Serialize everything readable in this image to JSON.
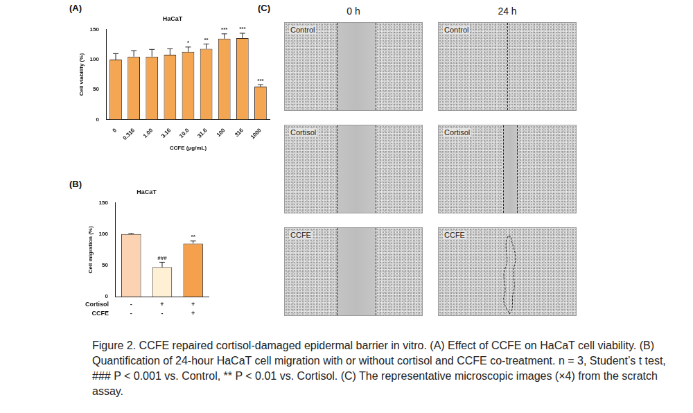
{
  "chart_data": [
    {
      "panel": "(A)",
      "type": "bar",
      "title": "HaCaT",
      "categories": [
        "0",
        "0.316",
        "1.00",
        "3.16",
        "10.0",
        "31.6",
        "100",
        "316",
        "1000"
      ],
      "values": [
        100,
        105,
        105,
        108,
        113,
        118,
        135,
        136,
        55
      ],
      "errors": [
        10,
        10,
        12,
        10,
        8,
        8,
        8,
        8,
        3
      ],
      "significance": [
        null,
        null,
        null,
        null,
        "*",
        "**",
        "***",
        "***",
        "***"
      ],
      "color": "#f5a653",
      "x_label": "CCFE (μg/mL)",
      "y_label": "Cell viability (%)",
      "ylim": [
        0,
        150
      ],
      "yticks": [
        0,
        50,
        100,
        150
      ],
      "grid": false
    },
    {
      "panel": "(B)",
      "type": "bar",
      "title": "HaCaT",
      "categories": [
        null,
        null,
        null
      ],
      "treatment_rows": [
        {
          "name": "Cortisol",
          "signs": [
            "-",
            "+",
            "+"
          ]
        },
        {
          "name": "CCFE",
          "signs": [
            "-",
            "-",
            "+"
          ]
        }
      ],
      "values": [
        100,
        47,
        85
      ],
      "errors": [
        1,
        8,
        4
      ],
      "significance": [
        null,
        "###",
        "**"
      ],
      "colors": [
        "#fbd3b3",
        "#fdf0d5",
        "#f5a04c"
      ],
      "y_label": "Cell migration (%)",
      "ylim": [
        0,
        150
      ],
      "yticks": [
        0,
        50,
        100,
        150
      ],
      "grid": false
    }
  ],
  "image_panel": {
    "panel": "(C)",
    "column_titles": [
      "0 h",
      "24 h"
    ],
    "row_labels": [
      "Control",
      "Cortisol",
      "CCFE"
    ]
  },
  "caption": "Figure 2. CCFE repaired cortisol-damaged epidermal barrier in vitro. (A) Effect of CCFE on HaCaT cell viability. (B) Quantification of 24-hour HaCaT cell migration with or without cortisol and CCFE co-treatment. n = 3, Student’s t test, ### P < 0.001 vs. Control, ** P < 0.01 vs. Cortisol. (C) The representative microscopic images (×4) from the scratch assay."
}
